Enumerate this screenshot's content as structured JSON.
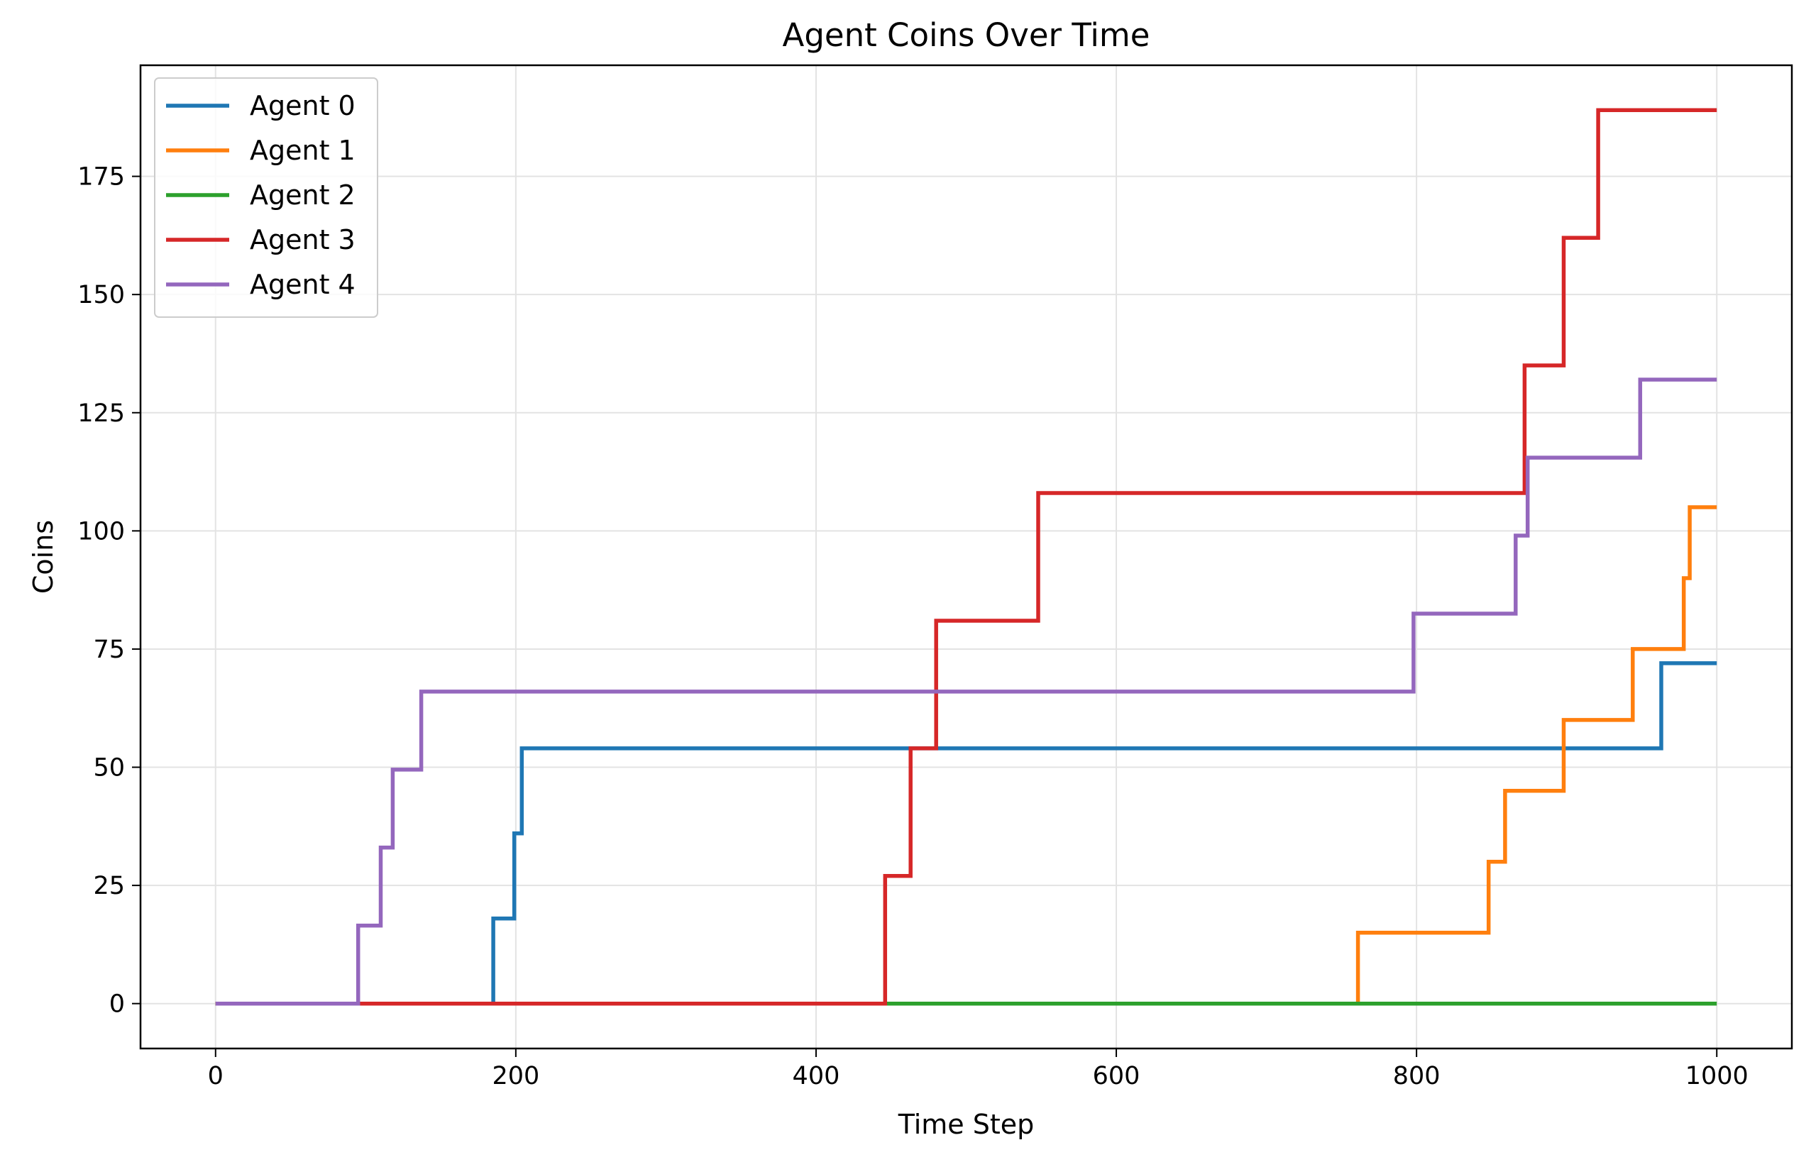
{
  "chart_data": {
    "type": "line",
    "step": true,
    "title": "Agent Coins Over Time",
    "xlabel": "Time Step",
    "ylabel": "Coins",
    "xlim": [
      -50,
      1050
    ],
    "ylim": [
      -9.5,
      198.5
    ],
    "xticks": [
      0,
      200,
      400,
      600,
      800,
      1000
    ],
    "yticks": [
      0,
      25,
      50,
      75,
      100,
      125,
      150,
      175
    ],
    "grid": true,
    "legend_position": "top-left",
    "series": [
      {
        "name": "Agent 0",
        "color": "#1f77b4",
        "points": [
          [
            0,
            0
          ],
          [
            185,
            0
          ],
          [
            185,
            18
          ],
          [
            199,
            18
          ],
          [
            199,
            36
          ],
          [
            204,
            36
          ],
          [
            204,
            54
          ],
          [
            963,
            54
          ],
          [
            963,
            72
          ],
          [
            1000,
            72
          ]
        ]
      },
      {
        "name": "Agent 1",
        "color": "#ff7f0e",
        "points": [
          [
            0,
            0
          ],
          [
            761,
            0
          ],
          [
            761,
            15
          ],
          [
            848,
            15
          ],
          [
            848,
            30
          ],
          [
            859,
            30
          ],
          [
            859,
            45
          ],
          [
            898,
            45
          ],
          [
            898,
            60
          ],
          [
            944,
            60
          ],
          [
            944,
            75
          ],
          [
            978,
            75
          ],
          [
            978,
            90
          ],
          [
            982,
            90
          ],
          [
            982,
            105
          ],
          [
            1000,
            105
          ]
        ]
      },
      {
        "name": "Agent 2",
        "color": "#2ca02c",
        "points": [
          [
            0,
            0
          ],
          [
            1000,
            0
          ]
        ]
      },
      {
        "name": "Agent 3",
        "color": "#d62728",
        "points": [
          [
            0,
            0
          ],
          [
            446,
            0
          ],
          [
            446,
            27
          ],
          [
            463,
            27
          ],
          [
            463,
            54
          ],
          [
            480,
            54
          ],
          [
            480,
            81
          ],
          [
            548,
            81
          ],
          [
            548,
            108
          ],
          [
            872,
            108
          ],
          [
            872,
            135
          ],
          [
            898,
            135
          ],
          [
            898,
            162
          ],
          [
            921,
            162
          ],
          [
            921,
            189
          ],
          [
            1000,
            189
          ]
        ]
      },
      {
        "name": "Agent 4",
        "color": "#9467bd",
        "points": [
          [
            0,
            0
          ],
          [
            95,
            0
          ],
          [
            95,
            16.5
          ],
          [
            110,
            16.5
          ],
          [
            110,
            33
          ],
          [
            118,
            33
          ],
          [
            118,
            49.5
          ],
          [
            137,
            49.5
          ],
          [
            137,
            66
          ],
          [
            798,
            66
          ],
          [
            798,
            82.5
          ],
          [
            866,
            82.5
          ],
          [
            866,
            99
          ],
          [
            874,
            99
          ],
          [
            874,
            115.5
          ],
          [
            949,
            115.5
          ],
          [
            949,
            132
          ],
          [
            1000,
            132
          ]
        ]
      }
    ]
  }
}
